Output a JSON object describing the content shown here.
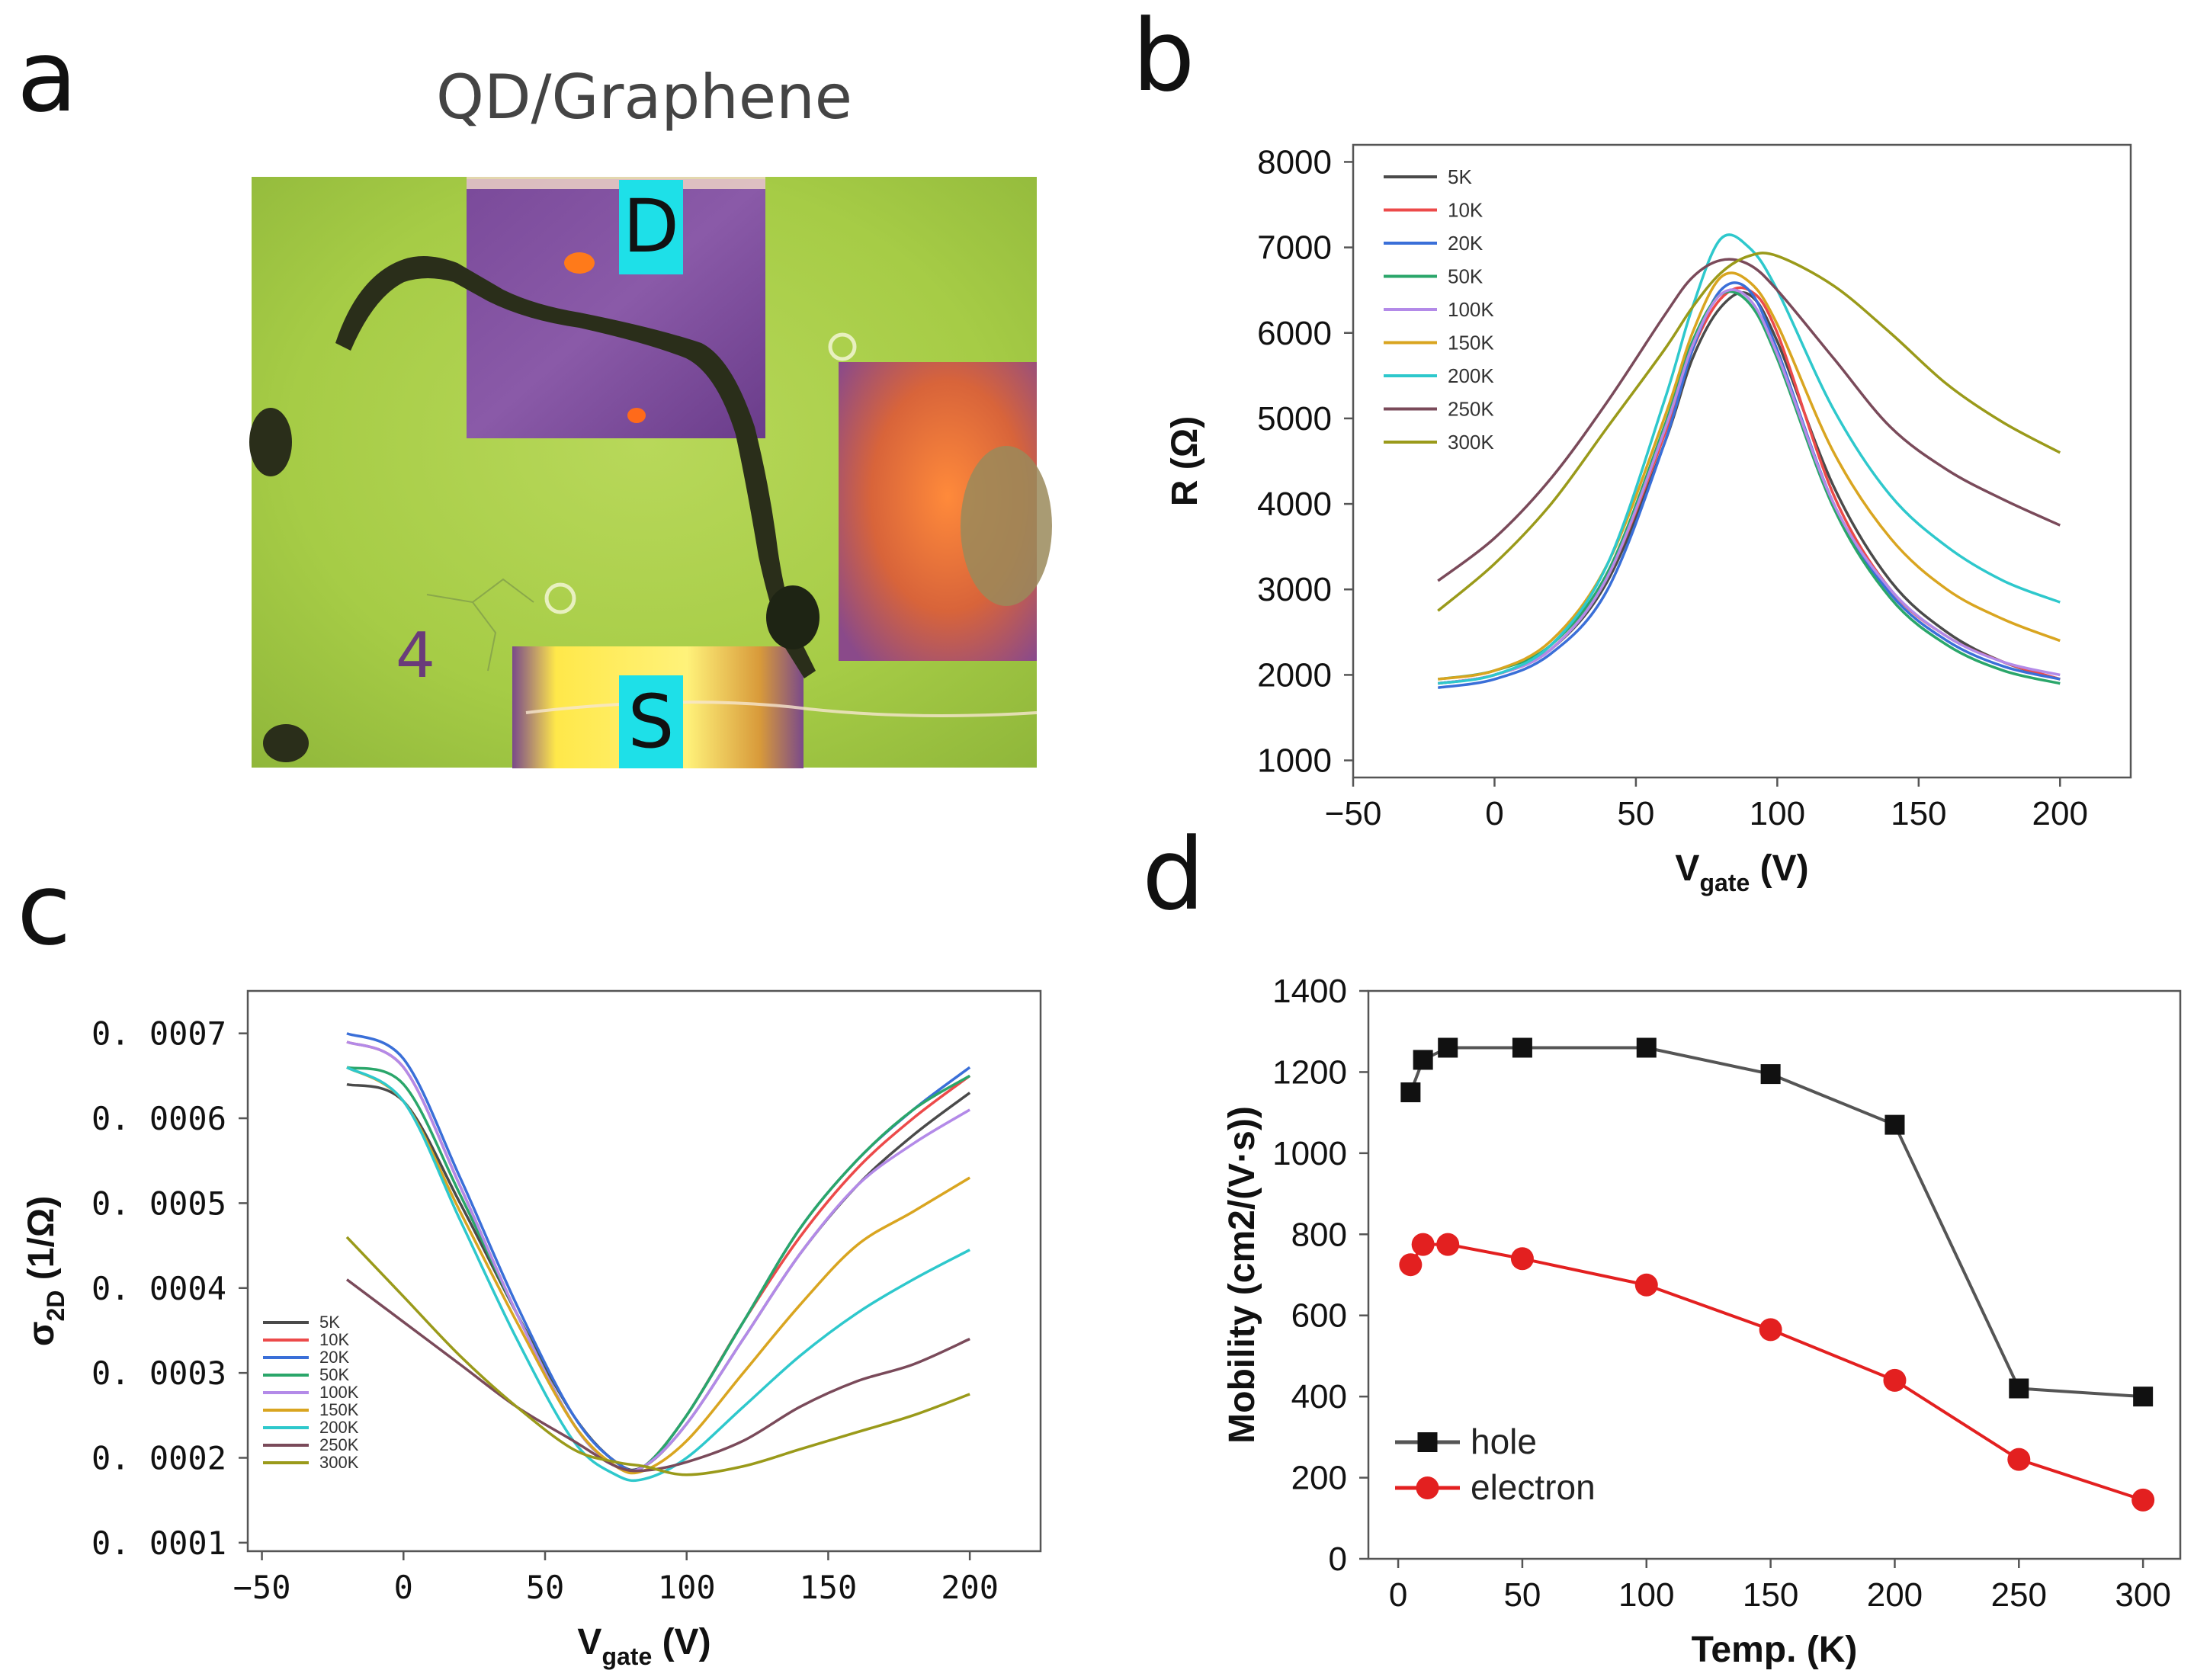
{
  "panels": {
    "a": {
      "letter": "a",
      "title": "QD/Graphene",
      "labels": {
        "drain": "D",
        "source": "S",
        "mark": "4"
      }
    },
    "b": {
      "letter": "b"
    },
    "c": {
      "letter": "c"
    },
    "d": {
      "letter": "d"
    }
  },
  "colors": {
    "5K": "#4a4a4a",
    "10K": "#ec4a4a",
    "20K": "#3a6fd8",
    "50K": "#2aa66a",
    "100K": "#b38ae8",
    "150K": "#d9a520",
    "200K": "#2ec8cc",
    "250K": "#7a4a5a",
    "300K": "#9a9a1a",
    "hole": "#111111",
    "electron": "#e32020",
    "hole_line": "#555555"
  },
  "chart_data": [
    {
      "id": "b",
      "type": "line",
      "title": "",
      "xlabel_main": "V",
      "xlabel_sub": "gate",
      "xlabel_unit": " (V)",
      "ylabel": "R (Ω)",
      "xlim": [
        -50,
        225
      ],
      "ylim": [
        800,
        8200
      ],
      "xticks": [
        -50,
        0,
        50,
        100,
        150,
        200
      ],
      "xtick_labels": [
        "−50",
        "0",
        "50",
        "100",
        "150",
        "200"
      ],
      "yticks": [
        1000,
        2000,
        3000,
        4000,
        5000,
        6000,
        7000,
        8000
      ],
      "ytick_labels": [
        "1000",
        "2000",
        "3000",
        "4000",
        "5000",
        "6000",
        "7000",
        "8000"
      ],
      "legend_position": "top-left",
      "series": [
        {
          "name": "5K",
          "x": [
            -20,
            0,
            20,
            40,
            60,
            70,
            80,
            90,
            100,
            120,
            140,
            160,
            180,
            200
          ],
          "values": [
            1900,
            2000,
            2300,
            3100,
            4700,
            5700,
            6300,
            6450,
            5900,
            4200,
            3100,
            2500,
            2150,
            1950
          ]
        },
        {
          "name": "10K",
          "x": [
            -20,
            0,
            20,
            40,
            60,
            70,
            80,
            90,
            100,
            120,
            140,
            160,
            180,
            200
          ],
          "values": [
            1900,
            2000,
            2300,
            3150,
            4800,
            5800,
            6400,
            6500,
            6000,
            4100,
            3000,
            2450,
            2150,
            1950
          ]
        },
        {
          "name": "20K",
          "x": [
            -20,
            0,
            20,
            40,
            60,
            70,
            80,
            90,
            100,
            120,
            140,
            160,
            180,
            200
          ],
          "values": [
            1850,
            1950,
            2250,
            3000,
            4700,
            5800,
            6500,
            6500,
            5800,
            4000,
            2950,
            2400,
            2100,
            1950
          ]
        },
        {
          "name": "50K",
          "x": [
            -20,
            0,
            20,
            40,
            60,
            70,
            80,
            90,
            100,
            120,
            140,
            160,
            180,
            200
          ],
          "values": [
            1950,
            2050,
            2350,
            3200,
            4900,
            5900,
            6450,
            6350,
            5700,
            3950,
            2900,
            2350,
            2050,
            1900
          ]
        },
        {
          "name": "100K",
          "x": [
            -20,
            0,
            20,
            40,
            60,
            70,
            80,
            90,
            100,
            120,
            140,
            160,
            180,
            200
          ],
          "values": [
            1900,
            2000,
            2300,
            3150,
            4850,
            5850,
            6450,
            6400,
            5750,
            4000,
            3000,
            2450,
            2150,
            2000
          ]
        },
        {
          "name": "150K",
          "x": [
            -20,
            0,
            20,
            40,
            60,
            70,
            80,
            90,
            100,
            120,
            140,
            160,
            180,
            200
          ],
          "values": [
            1950,
            2050,
            2400,
            3300,
            5000,
            6000,
            6650,
            6600,
            6100,
            4600,
            3600,
            3000,
            2650,
            2400
          ]
        },
        {
          "name": "200K",
          "x": [
            -20,
            0,
            20,
            40,
            60,
            70,
            80,
            90,
            100,
            120,
            140,
            160,
            180,
            200
          ],
          "values": [
            1900,
            2000,
            2350,
            3300,
            5200,
            6300,
            7100,
            7000,
            6500,
            5100,
            4100,
            3500,
            3100,
            2850
          ]
        },
        {
          "name": "250K",
          "x": [
            -20,
            0,
            20,
            40,
            60,
            70,
            80,
            90,
            100,
            120,
            140,
            160,
            180,
            200
          ],
          "values": [
            3100,
            3600,
            4300,
            5200,
            6200,
            6650,
            6850,
            6800,
            6500,
            5700,
            4900,
            4400,
            4050,
            3750
          ]
        },
        {
          "name": "300K",
          "x": [
            -20,
            0,
            20,
            40,
            60,
            70,
            80,
            90,
            100,
            120,
            140,
            160,
            180,
            200
          ],
          "values": [
            2750,
            3300,
            4000,
            4900,
            5800,
            6300,
            6700,
            6900,
            6900,
            6550,
            6000,
            5400,
            4950,
            4600
          ]
        }
      ]
    },
    {
      "id": "c",
      "type": "line",
      "title": "",
      "xlabel_main": "V",
      "xlabel_sub": "gate",
      "xlabel_unit": " (V)",
      "ylabel_main": "σ",
      "ylabel_sub": "2D",
      "ylabel_unit": " (1/Ω)",
      "xlim": [
        -55,
        225
      ],
      "ylim": [
        9e-05,
        0.00075
      ],
      "xticks": [
        -50,
        0,
        50,
        100,
        150,
        200
      ],
      "xtick_labels": [
        "−50",
        "0",
        "50",
        "100",
        "150",
        "200"
      ],
      "yticks": [
        0.0001,
        0.0002,
        0.0003,
        0.0004,
        0.0005,
        0.0006,
        0.0007
      ],
      "ytick_labels": [
        "0. 0001",
        "0. 0002",
        "0. 0003",
        "0. 0004",
        "0. 0005",
        "0. 0006",
        "0. 0007"
      ],
      "legend_position": "bottom-left",
      "series": [
        {
          "name": "5K",
          "x": [
            -20,
            0,
            20,
            40,
            60,
            75,
            85,
            100,
            120,
            140,
            160,
            180,
            200
          ],
          "values": [
            0.00064,
            0.00062,
            0.0005,
            0.00037,
            0.00025,
            0.000195,
            0.00019,
            0.00024,
            0.00034,
            0.00044,
            0.00052,
            0.00058,
            0.00063
          ]
        },
        {
          "name": "10K",
          "x": [
            -20,
            0,
            20,
            40,
            60,
            75,
            85,
            100,
            120,
            140,
            160,
            180,
            200
          ],
          "values": [
            0.00069,
            0.00066,
            0.00052,
            0.00037,
            0.00024,
            0.00019,
            0.00019,
            0.00025,
            0.00036,
            0.00046,
            0.00054,
            0.0006,
            0.00065
          ]
        },
        {
          "name": "20K",
          "x": [
            -20,
            0,
            20,
            40,
            60,
            75,
            85,
            100,
            120,
            140,
            160,
            180,
            200
          ],
          "values": [
            0.0007,
            0.00067,
            0.00053,
            0.00038,
            0.00025,
            0.000195,
            0.00019,
            0.00025,
            0.00036,
            0.00047,
            0.00055,
            0.00061,
            0.00066
          ]
        },
        {
          "name": "50K",
          "x": [
            -20,
            0,
            20,
            40,
            60,
            75,
            85,
            100,
            120,
            140,
            160,
            180,
            200
          ],
          "values": [
            0.00066,
            0.00064,
            0.00051,
            0.00037,
            0.00024,
            0.00019,
            0.00019,
            0.00025,
            0.00036,
            0.00047,
            0.00055,
            0.00061,
            0.00065
          ]
        },
        {
          "name": "100K",
          "x": [
            -20,
            0,
            20,
            40,
            60,
            75,
            85,
            100,
            120,
            140,
            160,
            180,
            200
          ],
          "values": [
            0.00069,
            0.00066,
            0.00052,
            0.00037,
            0.00024,
            0.00019,
            0.00019,
            0.00024,
            0.00034,
            0.00044,
            0.00052,
            0.00057,
            0.00061
          ]
        },
        {
          "name": "150K",
          "x": [
            -20,
            0,
            20,
            40,
            60,
            75,
            85,
            100,
            120,
            140,
            160,
            180,
            200
          ],
          "values": [
            0.00066,
            0.00062,
            0.00049,
            0.00036,
            0.00024,
            0.00019,
            0.000185,
            0.00022,
            0.0003,
            0.00038,
            0.00045,
            0.00049,
            0.00053
          ]
        },
        {
          "name": "200K",
          "x": [
            -20,
            0,
            20,
            40,
            60,
            75,
            85,
            100,
            120,
            140,
            160,
            180,
            200
          ],
          "values": [
            0.00066,
            0.00062,
            0.00048,
            0.00034,
            0.00022,
            0.00018,
            0.000175,
            0.0002,
            0.00026,
            0.00032,
            0.00037,
            0.00041,
            0.000445
          ]
        },
        {
          "name": "250K",
          "x": [
            -20,
            0,
            20,
            40,
            60,
            75,
            85,
            100,
            120,
            140,
            160,
            180,
            200
          ],
          "values": [
            0.00041,
            0.00036,
            0.00031,
            0.00026,
            0.00022,
            0.00019,
            0.000185,
            0.000195,
            0.00022,
            0.00026,
            0.00029,
            0.00031,
            0.00034
          ]
        },
        {
          "name": "300K",
          "x": [
            -20,
            0,
            20,
            40,
            60,
            75,
            85,
            100,
            120,
            140,
            160,
            180,
            200
          ],
          "values": [
            0.00046,
            0.00039,
            0.00032,
            0.00026,
            0.00021,
            0.000195,
            0.00019,
            0.00018,
            0.00019,
            0.00021,
            0.00023,
            0.00025,
            0.000275
          ]
        }
      ]
    },
    {
      "id": "d",
      "type": "line",
      "title": "",
      "xlabel": "Temp. (K)",
      "ylabel": "Mobility (cm2/(V·s))",
      "xlim": [
        -12,
        315
      ],
      "ylim": [
        0,
        1400
      ],
      "xticks": [
        0,
        50,
        100,
        150,
        200,
        250,
        300
      ],
      "xtick_labels": [
        "0",
        "50",
        "100",
        "150",
        "200",
        "250",
        "300"
      ],
      "yticks": [
        0,
        200,
        400,
        600,
        800,
        1000,
        1200,
        1400
      ],
      "ytick_labels": [
        "0",
        "200",
        "400",
        "600",
        "800",
        "1000",
        "1200",
        "1400"
      ],
      "legend_position": "bottom-left",
      "series": [
        {
          "name": "hole",
          "marker": "square",
          "x": [
            5,
            10,
            20,
            50,
            100,
            150,
            200,
            250,
            300
          ],
          "values": [
            1150,
            1230,
            1260,
            1260,
            1260,
            1195,
            1070,
            420,
            400
          ]
        },
        {
          "name": "electron",
          "marker": "circle",
          "x": [
            5,
            10,
            20,
            50,
            100,
            150,
            200,
            250,
            300
          ],
          "values": [
            725,
            775,
            775,
            740,
            675,
            565,
            440,
            245,
            145
          ]
        }
      ]
    }
  ]
}
